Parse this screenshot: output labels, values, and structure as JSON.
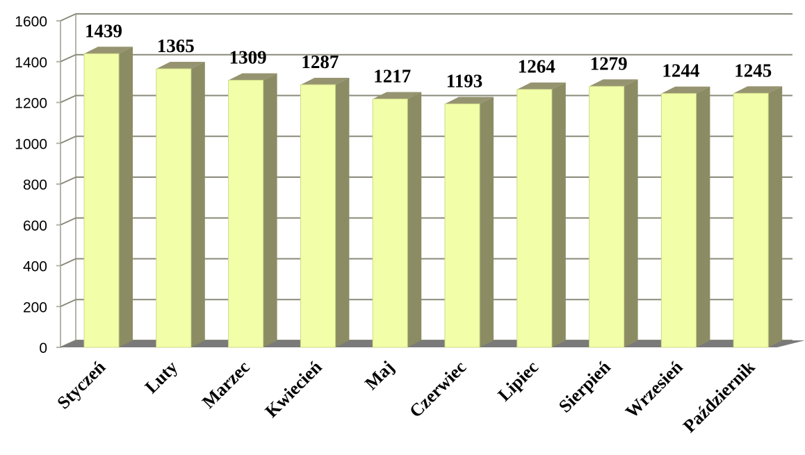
{
  "chart_data": {
    "type": "bar",
    "style": "3d-column",
    "categories": [
      "Styczeń",
      "Luty",
      "Marzec",
      "Kwiecień",
      "Maj",
      "Czerwiec",
      "Lipiec",
      "Sierpień",
      "Wrzesień",
      "Październik"
    ],
    "values": [
      1439,
      1365,
      1309,
      1287,
      1217,
      1193,
      1264,
      1279,
      1244,
      1245
    ],
    "data_labels": [
      "1439",
      "1365",
      "1309",
      "1287",
      "1217",
      "1193",
      "1264",
      "1279",
      "1244",
      "1245"
    ],
    "yticks": [
      "0",
      "200",
      "400",
      "600",
      "800",
      "1000",
      "1200",
      "1400",
      "1600"
    ],
    "ylim": [
      0,
      1600
    ],
    "grid": true,
    "legend": "none",
    "colors": {
      "bar_front": "#f2ffa8",
      "bar_side": "#8c8c64",
      "bar_top": "#969470",
      "floor": "#7a7a7a",
      "grid": "#8a8a7a",
      "wall_edge": "#b4b4a8"
    }
  }
}
